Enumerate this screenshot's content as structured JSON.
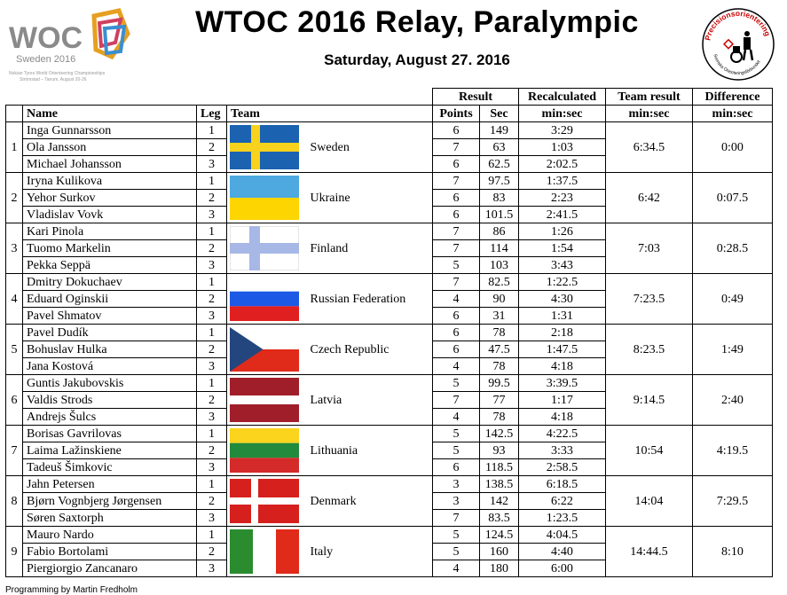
{
  "header": {
    "title": "WTOC 2016 Relay, Paralympic",
    "date": "Saturday, August 27. 2016",
    "woc_logo_text": "WOC",
    "woc_logo_sub": "Sweden 2016",
    "woc_logo_fine1": "Nokian Tyres World Orienteering Championships",
    "woc_logo_fine2": "Strömstad – Tanum, August 20-26",
    "precision_logo_text": "Precisionsorientering",
    "precision_logo_sub": "Svenska Orienteringsförbundet"
  },
  "columns": {
    "group_result": "Result",
    "group_recalc": "Recalculated",
    "group_team_result": "Team result",
    "group_difference": "Difference",
    "name": "Name",
    "leg": "Leg",
    "team": "Team",
    "points": "Points",
    "sec": "Sec",
    "minsec1": "min:sec",
    "minsec2": "min:sec",
    "minsec3": "min:sec"
  },
  "teams": [
    {
      "rank": "1",
      "country": "Sweden",
      "flag": "sweden",
      "team_result": "6:34.5",
      "difference": "0:00",
      "members": [
        {
          "name": "Inga Gunnarsson",
          "leg": "1",
          "points": "6",
          "sec": "149",
          "recalc": "3:29"
        },
        {
          "name": "Ola Jansson",
          "leg": "2",
          "points": "7",
          "sec": "63",
          "recalc": "1:03"
        },
        {
          "name": "Michael Johansson",
          "leg": "3",
          "points": "6",
          "sec": "62.5",
          "recalc": "2:02.5"
        }
      ]
    },
    {
      "rank": "2",
      "country": "Ukraine",
      "flag": "ukraine",
      "team_result": "6:42",
      "difference": "0:07.5",
      "members": [
        {
          "name": "Iryna Kulikova",
          "leg": "1",
          "points": "7",
          "sec": "97.5",
          "recalc": "1:37.5"
        },
        {
          "name": "Yehor Surkov",
          "leg": "2",
          "points": "6",
          "sec": "83",
          "recalc": "2:23"
        },
        {
          "name": "Vladislav Vovk",
          "leg": "3",
          "points": "6",
          "sec": "101.5",
          "recalc": "2:41.5"
        }
      ]
    },
    {
      "rank": "3",
      "country": "Finland",
      "flag": "finland",
      "team_result": "7:03",
      "difference": "0:28.5",
      "members": [
        {
          "name": "Kari Pinola",
          "leg": "1",
          "points": "7",
          "sec": "86",
          "recalc": "1:26"
        },
        {
          "name": "Tuomo Markelin",
          "leg": "2",
          "points": "7",
          "sec": "114",
          "recalc": "1:54"
        },
        {
          "name": "Pekka Seppä",
          "leg": "3",
          "points": "5",
          "sec": "103",
          "recalc": "3:43"
        }
      ]
    },
    {
      "rank": "4",
      "country": "Russian Federation",
      "flag": "russia",
      "team_result": "7:23.5",
      "difference": "0:49",
      "members": [
        {
          "name": "Dmitry Dokuchaev",
          "leg": "1",
          "points": "7",
          "sec": "82.5",
          "recalc": "1:22.5"
        },
        {
          "name": "Eduard Oginskii",
          "leg": "2",
          "points": "4",
          "sec": "90",
          "recalc": "4:30"
        },
        {
          "name": "Pavel Shmatov",
          "leg": "3",
          "points": "6",
          "sec": "31",
          "recalc": "1:31"
        }
      ]
    },
    {
      "rank": "5",
      "country": "Czech Republic",
      "flag": "czech",
      "team_result": "8:23.5",
      "difference": "1:49",
      "members": [
        {
          "name": "Pavel Dudík",
          "leg": "1",
          "points": "6",
          "sec": "78",
          "recalc": "2:18"
        },
        {
          "name": "Bohuslav Hulka",
          "leg": "2",
          "points": "6",
          "sec": "47.5",
          "recalc": "1:47.5"
        },
        {
          "name": "Jana Kostová",
          "leg": "3",
          "points": "4",
          "sec": "78",
          "recalc": "4:18"
        }
      ]
    },
    {
      "rank": "6",
      "country": "Latvia",
      "flag": "latvia",
      "team_result": "9:14.5",
      "difference": "2:40",
      "members": [
        {
          "name": "Guntis Jakubovskis",
          "leg": "1",
          "points": "5",
          "sec": "99.5",
          "recalc": "3:39.5"
        },
        {
          "name": "Valdis Strods",
          "leg": "2",
          "points": "7",
          "sec": "77",
          "recalc": "1:17"
        },
        {
          "name": "Andrejs Šulcs",
          "leg": "3",
          "points": "4",
          "sec": "78",
          "recalc": "4:18"
        }
      ]
    },
    {
      "rank": "7",
      "country": "Lithuania",
      "flag": "lithuania",
      "team_result": "10:54",
      "difference": "4:19.5",
      "members": [
        {
          "name": "Borisas Gavrilovas",
          "leg": "1",
          "points": "5",
          "sec": "142.5",
          "recalc": "4:22.5"
        },
        {
          "name": "Laima Lažinskiene",
          "leg": "2",
          "points": "5",
          "sec": "93",
          "recalc": "3:33"
        },
        {
          "name": "Tadeuš Šimkovic",
          "leg": "3",
          "points": "6",
          "sec": "118.5",
          "recalc": "2:58.5"
        }
      ]
    },
    {
      "rank": "8",
      "country": "Denmark",
      "flag": "denmark",
      "team_result": "14:04",
      "difference": "7:29.5",
      "members": [
        {
          "name": "Jahn Petersen",
          "leg": "1",
          "points": "3",
          "sec": "138.5",
          "recalc": "6:18.5"
        },
        {
          "name": "Bjørn Vognbjerg Jørgensen",
          "leg": "2",
          "points": "3",
          "sec": "142",
          "recalc": "6:22"
        },
        {
          "name": "Søren Saxtorph",
          "leg": "3",
          "points": "7",
          "sec": "83.5",
          "recalc": "1:23.5"
        }
      ]
    },
    {
      "rank": "9",
      "country": "Italy",
      "flag": "italy",
      "team_result": "14:44.5",
      "difference": "8:10",
      "members": [
        {
          "name": "Mauro Nardo",
          "leg": "1",
          "points": "5",
          "sec": "124.5",
          "recalc": "4:04.5"
        },
        {
          "name": "Fabio Bortolami",
          "leg": "2",
          "points": "5",
          "sec": "160",
          "recalc": "4:40"
        },
        {
          "name": "Piergiorgio Zancanaro",
          "leg": "3",
          "points": "4",
          "sec": "180",
          "recalc": "6:00"
        }
      ]
    }
  ],
  "footer": "Programming by Martin Fredholm"
}
